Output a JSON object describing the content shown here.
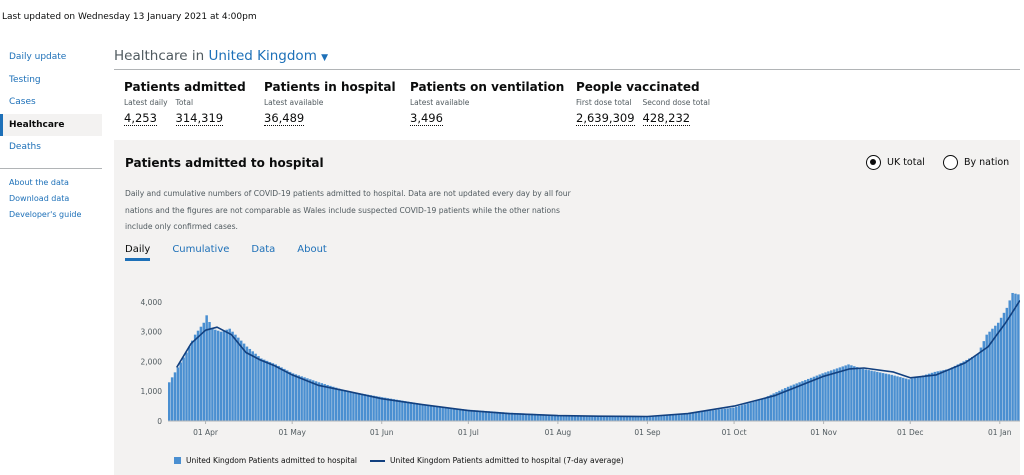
{
  "last_updated": "Last updated on Wednesday 13 January 2021 at 4:00pm",
  "sidebar": {
    "items": [
      "Daily update",
      "Testing",
      "Cases",
      "Healthcare",
      "Deaths"
    ],
    "active": "Healthcare",
    "links": [
      "About the data",
      "Download data",
      "Developer's guide"
    ]
  },
  "header": {
    "prefix": "Healthcare in",
    "area": "United Kingdom",
    "caret": "▼"
  },
  "headlines": [
    {
      "title": "Patients admitted",
      "metrics": [
        {
          "label": "Latest daily",
          "value": "4,253"
        },
        {
          "label": "Total",
          "value": "314,319"
        }
      ]
    },
    {
      "title": "Patients in hospital",
      "metrics": [
        {
          "label": "Latest available",
          "value": "36,489"
        }
      ]
    },
    {
      "title": "Patients on ventilation",
      "metrics": [
        {
          "label": "Latest available",
          "value": "3,496"
        }
      ]
    },
    {
      "title": "People vaccinated",
      "metrics": [
        {
          "label": "First dose total",
          "value": "2,639,309"
        },
        {
          "label": "Second dose total",
          "value": "428,232"
        }
      ]
    }
  ],
  "card": {
    "title": "Patients admitted to hospital",
    "radio_uk": "UK total",
    "radio_nation": "By nation",
    "description": "Daily and cumulative numbers of COVID-19 patients admitted to hospital. Data are not updated every day by all four nations and the figures are not comparable as Wales include suspected COVID-19 patients while the other nations include only confirmed cases.",
    "tabs": [
      "Daily",
      "Cumulative",
      "Data",
      "About"
    ],
    "active_tab": "Daily"
  },
  "legend": {
    "bars": "United Kingdom Patients admitted to hospital",
    "line": "United Kingdom Patients admitted to hospital (7-day average)"
  },
  "colors": {
    "accent": "#1d70b8",
    "bar": "#4a8fd1",
    "line": "#12407f",
    "card_bg": "#f3f2f1"
  },
  "chart_data": {
    "type": "bar",
    "title": "",
    "xlabel": "",
    "ylabel": "",
    "ylim": [
      0,
      4400
    ],
    "y_ticks": [
      "0",
      "1,000",
      "2,000",
      "3,000",
      "4,000"
    ],
    "x_ticks": [
      "01 Apr",
      "01 May",
      "01 Jun",
      "01 Jul",
      "01 Aug",
      "01 Sep",
      "01 Oct",
      "01 Nov",
      "01 Dec",
      "01 Jan"
    ],
    "x_start": "2020-03-19",
    "x_end": "2021-01-08",
    "grid": false,
    "legend_position": "bottom",
    "series": [
      {
        "name": "United Kingdom Patients admitted to hospital",
        "kind": "bar",
        "points": [
          [
            "2020-03-19",
            1300
          ],
          [
            "2020-03-22",
            1800
          ],
          [
            "2020-03-25",
            2300
          ],
          [
            "2020-03-28",
            2900
          ],
          [
            "2020-03-31",
            3300
          ],
          [
            "2020-04-01",
            3550
          ],
          [
            "2020-04-03",
            3100
          ],
          [
            "2020-04-06",
            3000
          ],
          [
            "2020-04-09",
            3100
          ],
          [
            "2020-04-12",
            2800
          ],
          [
            "2020-04-15",
            2500
          ],
          [
            "2020-04-20",
            2100
          ],
          [
            "2020-04-25",
            1900
          ],
          [
            "2020-05-01",
            1600
          ],
          [
            "2020-05-10",
            1300
          ],
          [
            "2020-05-20",
            1000
          ],
          [
            "2020-06-01",
            800
          ],
          [
            "2020-06-10",
            650
          ],
          [
            "2020-06-20",
            480
          ],
          [
            "2020-07-01",
            380
          ],
          [
            "2020-07-15",
            280
          ],
          [
            "2020-08-01",
            200
          ],
          [
            "2020-08-15",
            150
          ],
          [
            "2020-09-01",
            150
          ],
          [
            "2020-09-15",
            250
          ],
          [
            "2020-10-01",
            450
          ],
          [
            "2020-10-10",
            700
          ],
          [
            "2020-10-20",
            1150
          ],
          [
            "2020-11-01",
            1600
          ],
          [
            "2020-11-10",
            1900
          ],
          [
            "2020-11-15",
            1750
          ],
          [
            "2020-11-20",
            1650
          ],
          [
            "2020-11-25",
            1550
          ],
          [
            "2020-12-01",
            1400
          ],
          [
            "2020-12-05",
            1500
          ],
          [
            "2020-12-10",
            1650
          ],
          [
            "2020-12-15",
            1750
          ],
          [
            "2020-12-20",
            2000
          ],
          [
            "2020-12-25",
            2250
          ],
          [
            "2020-12-28",
            2900
          ],
          [
            "2021-01-01",
            3300
          ],
          [
            "2021-01-04",
            3800
          ],
          [
            "2021-01-06",
            4300
          ],
          [
            "2021-01-08",
            4253
          ]
        ]
      },
      {
        "name": "United Kingdom Patients admitted to hospital (7-day average)",
        "kind": "line",
        "points": [
          [
            "2020-03-22",
            1800
          ],
          [
            "2020-03-27",
            2600
          ],
          [
            "2020-04-01",
            3050
          ],
          [
            "2020-04-05",
            3150
          ],
          [
            "2020-04-10",
            2900
          ],
          [
            "2020-04-15",
            2300
          ],
          [
            "2020-04-20",
            2050
          ],
          [
            "2020-04-25",
            1850
          ],
          [
            "2020-05-01",
            1550
          ],
          [
            "2020-05-10",
            1200
          ],
          [
            "2020-05-20",
            1000
          ],
          [
            "2020-06-01",
            750
          ],
          [
            "2020-06-15",
            550
          ],
          [
            "2020-07-01",
            350
          ],
          [
            "2020-07-15",
            250
          ],
          [
            "2020-08-01",
            180
          ],
          [
            "2020-08-15",
            160
          ],
          [
            "2020-09-01",
            150
          ],
          [
            "2020-09-15",
            250
          ],
          [
            "2020-10-01",
            500
          ],
          [
            "2020-10-15",
            850
          ],
          [
            "2020-11-01",
            1500
          ],
          [
            "2020-11-10",
            1750
          ],
          [
            "2020-11-15",
            1780
          ],
          [
            "2020-11-25",
            1650
          ],
          [
            "2020-12-01",
            1450
          ],
          [
            "2020-12-10",
            1550
          ],
          [
            "2020-12-20",
            1950
          ],
          [
            "2020-12-28",
            2500
          ],
          [
            "2021-01-03",
            3300
          ],
          [
            "2021-01-08",
            4050
          ]
        ]
      }
    ]
  }
}
